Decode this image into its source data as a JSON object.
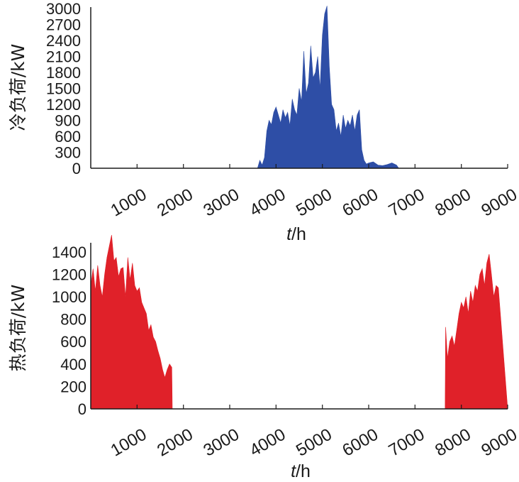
{
  "chart_data": [
    {
      "type": "area",
      "ylabel": "冷负荷/kW",
      "xlabel": "t/h",
      "xlim": [
        0,
        9000
      ],
      "ylim": [
        0,
        3000
      ],
      "x_ticks": [
        "1000",
        "2000",
        "3000",
        "4000",
        "5000",
        "6000",
        "7000",
        "8000",
        "9000"
      ],
      "y_ticks": [
        "0",
        "300",
        "600",
        "900",
        "1200",
        "1500",
        "1800",
        "2100",
        "2400",
        "2700",
        "3000"
      ],
      "color": "#2e4ea6",
      "series": [
        {
          "x": [
            0,
            3600,
            3650,
            3700,
            3750,
            3800,
            3850,
            3900,
            3950,
            4000,
            4050,
            4100,
            4150,
            4200,
            4250,
            4300,
            4350,
            4400,
            4450,
            4500,
            4550,
            4600,
            4650,
            4700,
            4750,
            4800,
            4850,
            4900,
            4950,
            5000,
            5050,
            5100,
            5150,
            5200,
            5250,
            5300,
            5350,
            5400,
            5450,
            5500,
            5550,
            5600,
            5650,
            5700,
            5750,
            5800,
            5850,
            5900,
            5950,
            6000,
            6100,
            6200,
            6300,
            6400,
            6500,
            6600,
            6650,
            9000
          ],
          "y": [
            0,
            0,
            150,
            60,
            200,
            700,
            900,
            820,
            1050,
            1150,
            1000,
            850,
            1100,
            950,
            1050,
            800,
            1300,
            1100,
            1000,
            1500,
            1250,
            2200,
            1400,
            1600,
            2300,
            1700,
            1800,
            2100,
            1500,
            2500,
            2900,
            3050,
            1900,
            1200,
            1100,
            700,
            850,
            600,
            1000,
            750,
            900,
            800,
            1000,
            700,
            1000,
            1100,
            350,
            150,
            80,
            100,
            120,
            60,
            50,
            70,
            100,
            60,
            0,
            0
          ]
        }
      ]
    },
    {
      "type": "area",
      "ylabel": "热负荷/kW",
      "xlabel": "t/h",
      "xlim": [
        0,
        9000
      ],
      "ylim": [
        0,
        1500
      ],
      "x_ticks": [
        "1000",
        "2000",
        "3000",
        "4000",
        "5000",
        "6000",
        "7000",
        "8000",
        "9000"
      ],
      "y_ticks": [
        "0",
        "200",
        "400",
        "600",
        "800",
        "1000",
        "1200",
        "1400"
      ],
      "color": "#e02129",
      "series": [
        {
          "x": [
            0,
            50,
            100,
            150,
            200,
            250,
            300,
            350,
            400,
            450,
            500,
            550,
            600,
            650,
            700,
            750,
            800,
            850,
            900,
            950,
            1000,
            1050,
            1100,
            1150,
            1200,
            1250,
            1300,
            1350,
            1400,
            1450,
            1500,
            1550,
            1600,
            1650,
            1700,
            1750,
            1760,
            7650,
            7660,
            7700,
            7750,
            7800,
            7850,
            7900,
            7950,
            8000,
            8050,
            8100,
            8150,
            8200,
            8250,
            8300,
            8350,
            8400,
            8450,
            8500,
            8550,
            8600,
            8650,
            8700,
            8750,
            8800,
            9000
          ],
          "y": [
            1100,
            1250,
            1050,
            1280,
            1100,
            1000,
            1200,
            1350,
            1450,
            1550,
            1320,
            1350,
            1180,
            1250,
            1260,
            1000,
            1350,
            1150,
            1300,
            1100,
            1050,
            1080,
            950,
            900,
            850,
            700,
            750,
            640,
            600,
            520,
            450,
            350,
            280,
            350,
            400,
            370,
            0,
            0,
            730,
            450,
            600,
            650,
            560,
            700,
            850,
            950,
            900,
            1000,
            850,
            1050,
            950,
            1100,
            1050,
            1200,
            1250,
            1100,
            1300,
            1380,
            1200,
            1000,
            1100,
            1080,
            0
          ]
        }
      ]
    }
  ]
}
